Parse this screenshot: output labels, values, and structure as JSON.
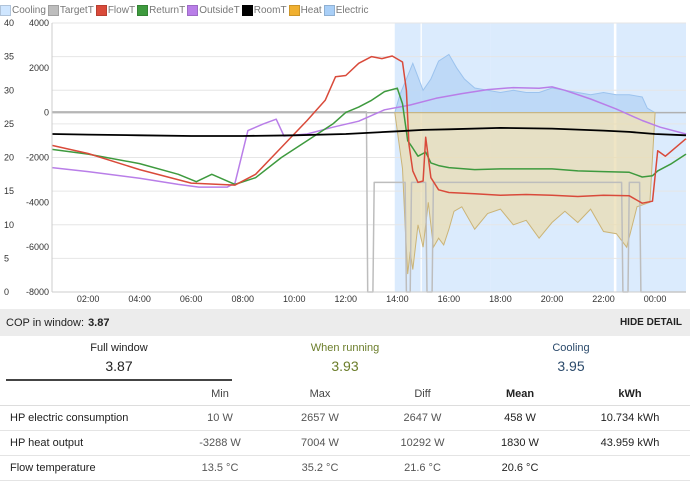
{
  "legend": [
    {
      "label": "Cooling",
      "color": "#cfe6ff"
    },
    {
      "label": "TargetT",
      "color": "#bdbdbd"
    },
    {
      "label": "FlowT",
      "color": "#d94a3a"
    },
    {
      "label": "ReturnT",
      "color": "#3e9a3e"
    },
    {
      "label": "OutsideT",
      "color": "#b97ee8"
    },
    {
      "label": "RoomT",
      "color": "#000000"
    },
    {
      "label": "Heat",
      "color": "#f0b030"
    },
    {
      "label": "Electric",
      "color": "#a9cff7"
    }
  ],
  "chart_data": {
    "type": "line",
    "x_unit": "hour",
    "x_ticks": [
      "02:00",
      "04:00",
      "06:00",
      "08:00",
      "10:00",
      "12:00",
      "14:00",
      "16:00",
      "18:00",
      "20:00",
      "22:00",
      "00:00"
    ],
    "x_tick_hours": [
      2,
      4,
      6,
      8,
      10,
      12,
      14,
      16,
      18,
      20,
      22,
      24
    ],
    "xlim": [
      0.6,
      25.2
    ],
    "y_left_ticks": [
      "40",
      "35",
      "30",
      "25",
      "20",
      "15",
      "10",
      "5",
      "0"
    ],
    "y_left_range": [
      0,
      40
    ],
    "y_right_ticks": [
      "4000",
      "2000",
      "0",
      "-2000",
      "-4000",
      "-6000",
      "-8000"
    ],
    "y_right_range": [
      -8000,
      4000
    ],
    "cooling_bands": [
      [
        13.9,
        14.9
      ],
      [
        14.95,
        17.6
      ],
      [
        17.6,
        22.4
      ],
      [
        22.5,
        25.2
      ]
    ],
    "series": [
      {
        "name": "FlowT",
        "axis": "left",
        "color": "#d94a3a",
        "points": [
          [
            0.6,
            21.8
          ],
          [
            2,
            20.6
          ],
          [
            4,
            18.2
          ],
          [
            6,
            16.2
          ],
          [
            7.7,
            15.9
          ],
          [
            8.5,
            17.5
          ],
          [
            9.5,
            21.5
          ],
          [
            10.5,
            25.5
          ],
          [
            11.2,
            28.5
          ],
          [
            11.6,
            32
          ],
          [
            12,
            32.2
          ],
          [
            12.5,
            34
          ],
          [
            13,
            35
          ],
          [
            13.4,
            34.7
          ],
          [
            13.8,
            35.1
          ],
          [
            14.2,
            34.2
          ],
          [
            14.35,
            30
          ],
          [
            14.45,
            22
          ],
          [
            14.6,
            18
          ],
          [
            14.8,
            16.3
          ],
          [
            15,
            16.5
          ],
          [
            15.1,
            23
          ],
          [
            15.3,
            17
          ],
          [
            15.6,
            15.2
          ],
          [
            16,
            14.8
          ],
          [
            17,
            14.6
          ],
          [
            18,
            14.4
          ],
          [
            19,
            14.5
          ],
          [
            20,
            14.4
          ],
          [
            21,
            14.2
          ],
          [
            22,
            14.4
          ],
          [
            23,
            14.3
          ],
          [
            23.5,
            13.2
          ],
          [
            23.9,
            13.5
          ],
          [
            24.1,
            21
          ],
          [
            24.4,
            20.2
          ],
          [
            24.8,
            21.5
          ],
          [
            25.2,
            22.8
          ]
        ]
      },
      {
        "name": "ReturnT",
        "axis": "left",
        "color": "#3e9a3e",
        "points": [
          [
            0.6,
            21.2
          ],
          [
            2,
            20.5
          ],
          [
            4,
            19.1
          ],
          [
            5.5,
            17.5
          ],
          [
            6.2,
            16.4
          ],
          [
            6.8,
            17.5
          ],
          [
            7.7,
            16
          ],
          [
            8.5,
            17
          ],
          [
            9.5,
            20
          ],
          [
            10.5,
            22.5
          ],
          [
            11.5,
            25
          ],
          [
            12,
            26.7
          ],
          [
            12.5,
            27.5
          ],
          [
            13,
            28.5
          ],
          [
            13.5,
            29.8
          ],
          [
            14,
            30.3
          ],
          [
            14.2,
            28
          ],
          [
            14.4,
            22.5
          ],
          [
            14.6,
            21.4
          ],
          [
            14.8,
            20.2
          ],
          [
            15.1,
            20.8
          ],
          [
            15.3,
            19.2
          ],
          [
            15.6,
            18.8
          ],
          [
            16,
            18.5
          ],
          [
            17,
            18.2
          ],
          [
            18,
            18.3
          ],
          [
            19,
            18.3
          ],
          [
            20,
            18.3
          ],
          [
            21,
            18
          ],
          [
            22,
            17.9
          ],
          [
            23,
            17.8
          ],
          [
            23.5,
            17.1
          ],
          [
            23.9,
            17.3
          ],
          [
            24.1,
            18
          ],
          [
            24.6,
            19
          ],
          [
            25.2,
            20.5
          ]
        ]
      },
      {
        "name": "OutsideT",
        "axis": "left",
        "color": "#b97ee8",
        "points": [
          [
            0.6,
            18.5
          ],
          [
            2,
            17.9
          ],
          [
            4,
            16.9
          ],
          [
            5.5,
            16
          ],
          [
            6.3,
            15.6
          ],
          [
            7.4,
            15.6
          ],
          [
            7.7,
            16.2
          ],
          [
            8.2,
            24
          ],
          [
            8.8,
            25
          ],
          [
            9.3,
            25.7
          ],
          [
            9.6,
            23.2
          ],
          [
            10.5,
            23.5
          ],
          [
            11.5,
            24.5
          ],
          [
            12.5,
            25.4
          ],
          [
            13.5,
            27.1
          ],
          [
            14.5,
            27.8
          ],
          [
            15.5,
            28.8
          ],
          [
            16.5,
            29.5
          ],
          [
            17.5,
            30.1
          ],
          [
            18.5,
            30.4
          ],
          [
            19.5,
            30.3
          ],
          [
            20,
            30.5
          ],
          [
            20.5,
            30
          ],
          [
            21.5,
            28.7
          ],
          [
            22.5,
            27.2
          ],
          [
            23.5,
            25.5
          ],
          [
            24.2,
            24.5
          ],
          [
            25.2,
            23.5
          ]
        ]
      },
      {
        "name": "RoomT",
        "axis": "left",
        "color": "#000000",
        "points": [
          [
            0.6,
            23.5
          ],
          [
            2,
            23.4
          ],
          [
            4,
            23.3
          ],
          [
            6,
            23.2
          ],
          [
            8,
            23.2
          ],
          [
            10,
            23.3
          ],
          [
            12,
            23.5
          ],
          [
            14,
            23.9
          ],
          [
            15,
            24.1
          ],
          [
            16,
            24.2
          ],
          [
            18,
            24.4
          ],
          [
            20,
            24.3
          ],
          [
            22,
            24
          ],
          [
            23,
            23.8
          ],
          [
            24,
            23.5
          ],
          [
            25.2,
            23.3
          ]
        ]
      },
      {
        "name": "TargetT",
        "axis": "left",
        "color": "#bdbdbd",
        "points": [
          [
            0.6,
            26.8
          ],
          [
            12.8,
            26.8
          ],
          [
            12.85,
            0
          ],
          [
            13.05,
            0
          ],
          [
            13.1,
            16.3
          ],
          [
            14.3,
            16.3
          ],
          [
            14.35,
            0
          ],
          [
            14.5,
            0
          ],
          [
            14.55,
            16.3
          ],
          [
            15.1,
            16.3
          ],
          [
            15.15,
            0
          ],
          [
            15.35,
            0
          ],
          [
            15.4,
            16.3
          ],
          [
            22.7,
            16.3
          ],
          [
            22.75,
            0
          ],
          [
            22.95,
            0
          ],
          [
            23,
            16.3
          ],
          [
            23.4,
            16.3
          ],
          [
            23.45,
            0
          ],
          [
            25.2,
            0
          ]
        ]
      },
      {
        "name": "Heat",
        "axis": "right",
        "color": "#f0b030",
        "points": [
          [
            13.9,
            0
          ],
          [
            14.2,
            -2500
          ],
          [
            14.3,
            -5000
          ],
          [
            14.4,
            -7200
          ],
          [
            14.5,
            -6200
          ],
          [
            14.6,
            -7000
          ],
          [
            14.8,
            -5000
          ],
          [
            15,
            -6000
          ],
          [
            15.2,
            -4000
          ],
          [
            15.4,
            -6000
          ],
          [
            15.6,
            -5600
          ],
          [
            15.8,
            -5900
          ],
          [
            16,
            -5200
          ],
          [
            16.2,
            -4400
          ],
          [
            16.5,
            -4200
          ],
          [
            17,
            -5200
          ],
          [
            17.5,
            -4500
          ],
          [
            18,
            -4300
          ],
          [
            18.5,
            -5000
          ],
          [
            19,
            -4800
          ],
          [
            19.5,
            -5600
          ],
          [
            20,
            -4900
          ],
          [
            20.5,
            -4400
          ],
          [
            21,
            -4900
          ],
          [
            21.5,
            -4300
          ],
          [
            22,
            -5300
          ],
          [
            22.5,
            -5400
          ],
          [
            22.9,
            -6000
          ],
          [
            23.3,
            -4200
          ],
          [
            23.8,
            -4000
          ],
          [
            24,
            0
          ]
        ]
      },
      {
        "name": "Electric",
        "axis": "right",
        "color": "#a9cff7",
        "points": [
          [
            13.9,
            0
          ],
          [
            14.1,
            800
          ],
          [
            14.6,
            2200
          ],
          [
            15,
            1000
          ],
          [
            15.3,
            1500
          ],
          [
            15.6,
            2300
          ],
          [
            16,
            2600
          ],
          [
            16.3,
            2000
          ],
          [
            16.6,
            1500
          ],
          [
            17,
            1100
          ],
          [
            17.5,
            1000
          ],
          [
            18,
            900
          ],
          [
            18.5,
            1000
          ],
          [
            19,
            900
          ],
          [
            19.5,
            900
          ],
          [
            20,
            1100
          ],
          [
            20.5,
            1000
          ],
          [
            21,
            900
          ],
          [
            21.5,
            800
          ],
          [
            22,
            900
          ],
          [
            22.5,
            800
          ],
          [
            23,
            800
          ],
          [
            23.5,
            700
          ],
          [
            23.7,
            200
          ],
          [
            24,
            0
          ]
        ]
      }
    ]
  },
  "cop": {
    "label": "COP in window:",
    "value": "3.87",
    "hide_label": "HIDE DETAIL"
  },
  "tabs": [
    {
      "label": "Full window",
      "value": "3.87",
      "color": "#333333"
    },
    {
      "label": "When running",
      "value": "3.93",
      "color": "#6b7d2a"
    },
    {
      "label": "Cooling",
      "value": "3.95",
      "color": "#2b4a6b"
    }
  ],
  "table": {
    "headers": [
      "",
      "Min",
      "Max",
      "Diff",
      "Mean",
      "kWh"
    ],
    "rows": [
      {
        "name": "HP electric consumption",
        "min": "10 W",
        "max": "2657 W",
        "diff": "2647 W",
        "mean": "458 W",
        "kwh": "10.734 kWh"
      },
      {
        "name": "HP heat output",
        "min": "-3288 W",
        "max": "7004 W",
        "diff": "10292 W",
        "mean": "1830 W",
        "kwh": "43.959 kWh"
      },
      {
        "name": "Flow temperature",
        "min": "13.5 °C",
        "max": "35.2 °C",
        "diff": "21.6 °C",
        "mean": "20.6 °C",
        "kwh": ""
      }
    ]
  }
}
